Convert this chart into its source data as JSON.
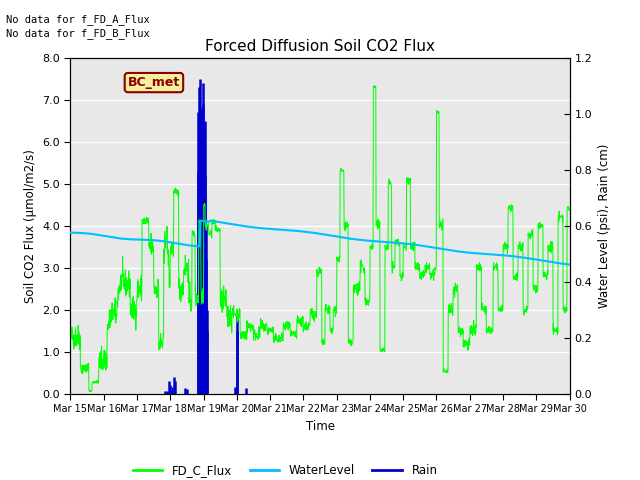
{
  "title": "Forced Diffusion Soil CO2 Flux",
  "xlabel": "Time",
  "ylabel_left": "Soil CO2 Flux (μmol/m2/s)",
  "ylabel_right": "Water Level (psi), Rain (cm)",
  "no_data_text": [
    "No data for f_FD_A_Flux",
    "No data for f_FD_B_Flux"
  ],
  "bc_met_label": "BC_met",
  "legend_entries": [
    "FD_C_Flux",
    "WaterLevel",
    "Rain"
  ],
  "legend_colors": [
    "#00ff00",
    "#00bfff",
    "#0000cd"
  ],
  "ylim_left": [
    0.0,
    8.0
  ],
  "ylim_right": [
    0.0,
    1.2
  ],
  "xtick_labels": [
    "Mar 15",
    "Mar 16",
    "Mar 17",
    "Mar 18",
    "Mar 19",
    "Mar 20",
    "Mar 21",
    "Mar 22",
    "Mar 23",
    "Mar 24",
    "Mar 25",
    "Mar 26",
    "Mar 27",
    "Mar 28",
    "Mar 29",
    "Mar 30"
  ],
  "bg_color": "#e8e8e8",
  "fig_bg_color": "#ffffff",
  "yticks_left": [
    0.0,
    1.0,
    2.0,
    3.0,
    4.0,
    5.0,
    6.0,
    7.0,
    8.0
  ],
  "yticks_right": [
    0.0,
    0.2,
    0.4,
    0.6,
    0.8,
    1.0,
    1.2
  ]
}
